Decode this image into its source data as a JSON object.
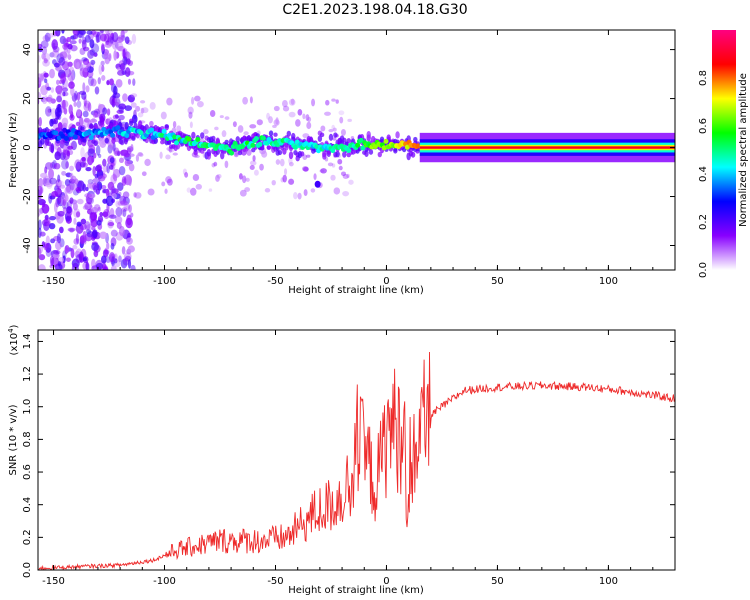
{
  "title": "C2E1.2023.198.04.18.G30",
  "colors": {
    "snr_line": "#ee2a2a",
    "spectrum_palette": [
      "#ffffff",
      "#8800ff",
      "#0000ff",
      "#00ffff",
      "#00ff00",
      "#ffff00",
      "#ff0000",
      "#ff0080"
    ]
  },
  "chart_data": [
    {
      "type": "heatmap",
      "title": "C2E1.2023.198.04.18.G30",
      "xlabel": "Height of straight line (km)",
      "ylabel": "Frequency (Hz)",
      "xlim": [
        -157,
        130
      ],
      "ylim": [
        -50,
        48
      ],
      "x_ticks": [
        -150,
        -100,
        -50,
        0,
        50,
        100
      ],
      "y_ticks": [
        -40,
        -20,
        0,
        20,
        40
      ],
      "grid": false,
      "colorbar": {
        "label": "Normalized spectral amplitude",
        "range": [
          0,
          1
        ],
        "ticks": [
          0.0,
          0.2,
          0.4,
          0.6,
          0.8
        ]
      },
      "ridge": [
        {
          "x": -150,
          "freq": 5,
          "amp": 0.3
        },
        {
          "x": -130,
          "freq": 6,
          "amp": 0.35
        },
        {
          "x": -115,
          "freq": 7,
          "amp": 0.4
        },
        {
          "x": -100,
          "freq": 5,
          "amp": 0.45
        },
        {
          "x": -85,
          "freq": 1,
          "amp": 0.5
        },
        {
          "x": -70,
          "freq": 0,
          "amp": 0.5
        },
        {
          "x": -55,
          "freq": 3,
          "amp": 0.5
        },
        {
          "x": -40,
          "freq": 1,
          "amp": 0.45
        },
        {
          "x": -25,
          "freq": 0,
          "amp": 0.45
        },
        {
          "x": -10,
          "freq": 1,
          "amp": 0.55
        },
        {
          "x": 5,
          "freq": 1,
          "amp": 0.7
        },
        {
          "x": 20,
          "freq": 0,
          "amp": 0.85
        },
        {
          "x": 60,
          "freq": 0,
          "amp": 0.85
        },
        {
          "x": 100,
          "freq": 0,
          "amp": 0.85
        },
        {
          "x": 130,
          "freq": 0,
          "amp": 0.8
        }
      ]
    },
    {
      "type": "line",
      "xlabel": "Height of straight line (km)",
      "ylabel": "SNR (10 * v/v)",
      "y_multiplier_label": "(x10",
      "y_multiplier_exp": "4",
      "y_multiplier_close": ")",
      "xlim": [
        -157,
        130
      ],
      "ylim": [
        0,
        1.47
      ],
      "x_ticks": [
        -150,
        -100,
        -50,
        0,
        50,
        100
      ],
      "y_ticks": [
        0.0,
        0.2,
        0.4,
        0.6,
        0.8,
        1.0,
        1.2,
        1.4
      ],
      "grid": false,
      "series": [
        {
          "x": [
            -157,
            -140,
            -120,
            -105,
            -95,
            -85,
            -75,
            -65,
            -55,
            -45,
            -38,
            -32,
            -25,
            -20,
            -15,
            -12,
            -8,
            -5,
            -2,
            2,
            5,
            8,
            9,
            12,
            15,
            20,
            25,
            35,
            50,
            70,
            90,
            105,
            115,
            125,
            130
          ],
          "y": [
            0.01,
            0.02,
            0.03,
            0.06,
            0.12,
            0.15,
            0.18,
            0.18,
            0.18,
            0.2,
            0.28,
            0.35,
            0.4,
            0.45,
            0.6,
            0.75,
            0.65,
            0.5,
            0.7,
            0.9,
            0.85,
            0.8,
            0.25,
            0.65,
            0.85,
            0.95,
            1.0,
            1.1,
            1.12,
            1.13,
            1.12,
            1.1,
            1.08,
            1.06,
            1.05
          ]
        }
      ]
    }
  ]
}
